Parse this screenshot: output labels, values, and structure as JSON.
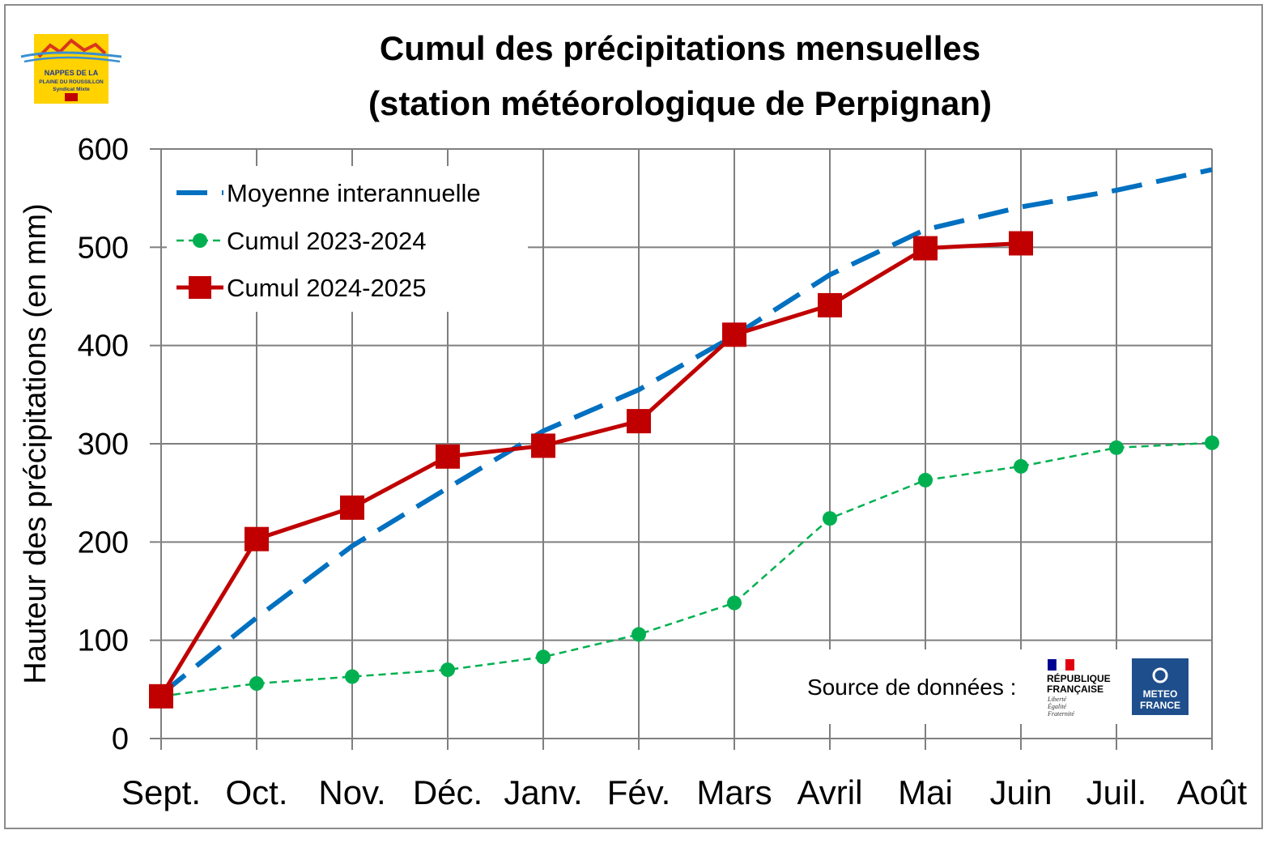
{
  "colors": {
    "moyenne": "#0070C0",
    "cumul_2023_2024": "#00B050",
    "cumul_2024_2025": "#C00000",
    "grid": "#7f7f7f",
    "logo_bg": "#FFD200",
    "meteo_bg": "#1F4E8C"
  },
  "chart_data": {
    "type": "line",
    "title": [
      "Cumul des précipitations mensuelles",
      "(station météorologique de Perpignan)"
    ],
    "ylabel": "Hauteur des précipitations (en mm)",
    "xlabel": "",
    "categories": [
      "Sept.",
      "Oct.",
      "Nov.",
      "Déc.",
      "Janv.",
      "Fév.",
      "Mars",
      "Avril",
      "Mai",
      "Juin",
      "Juil.",
      "Août"
    ],
    "ylim": [
      0,
      600
    ],
    "yticks": [
      0,
      100,
      200,
      300,
      400,
      500,
      600
    ],
    "grid": true,
    "legend_position": "top-left",
    "series": [
      {
        "name": "Moyenne interannuelle",
        "style": "dashed",
        "values": [
          45,
          123,
          196,
          255,
          313,
          355,
          410,
          472,
          518,
          541,
          558,
          579
        ]
      },
      {
        "name": "Cumul 2023-2024",
        "style": "dotted-markers",
        "values": [
          43,
          56,
          63,
          70,
          83,
          106,
          138,
          224,
          263,
          277,
          296,
          301
        ]
      },
      {
        "name": "Cumul 2024-2025",
        "style": "solid-square-markers",
        "values": [
          43,
          203,
          235,
          287,
          298,
          323,
          411,
          441,
          499,
          504,
          null,
          null
        ]
      }
    ]
  },
  "source": {
    "label": "Source de données :",
    "rf_line1": "RÉPUBLIQUE",
    "rf_line2": "FRANÇAISE",
    "rf_motto1": "Liberté",
    "rf_motto2": "Égalité",
    "rf_motto3": "Fraternité",
    "meteo_line1": "METEO",
    "meteo_line2": "FRANCE"
  },
  "logo": {
    "line1": "NAPPES DE LA",
    "line2": "PLAINE DU ROUSSILLON",
    "line3": "Syndicat Mixte"
  }
}
